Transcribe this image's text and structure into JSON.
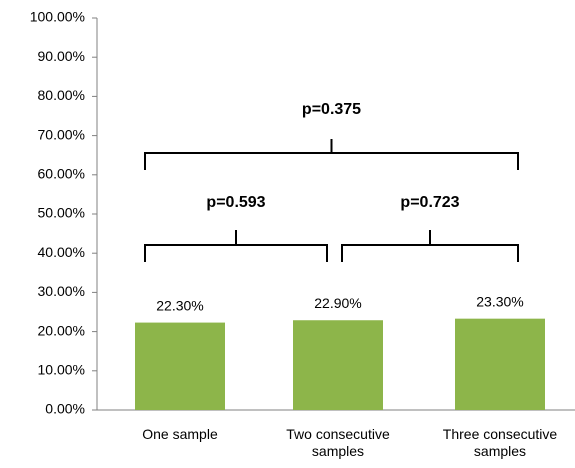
{
  "chart_data": {
    "type": "bar",
    "categories": [
      "One sample",
      "Two consecutive samples",
      "Three consecutive samples"
    ],
    "values": [
      22.3,
      22.9,
      23.3
    ],
    "value_labels": [
      "22.30%",
      "22.90%",
      "23.30%"
    ],
    "color": "#8db54a",
    "ylim": [
      0,
      100
    ],
    "yticks": [
      {
        "value": 0,
        "label": "0.00%"
      },
      {
        "value": 10,
        "label": "10.00%"
      },
      {
        "value": 20,
        "label": "20.00%"
      },
      {
        "value": 30,
        "label": "30.00%"
      },
      {
        "value": 40,
        "label": "40.00%"
      },
      {
        "value": 50,
        "label": "50.00%"
      },
      {
        "value": 60,
        "label": "60.00%"
      },
      {
        "value": 70,
        "label": "70.00%"
      },
      {
        "value": 80,
        "label": "80.00%"
      },
      {
        "value": 90,
        "label": "90.00%"
      },
      {
        "value": 100,
        "label": "100.00%"
      }
    ],
    "grid": false,
    "annotations": [
      "p=0.593",
      "p=0.723",
      "p=0.375"
    ]
  }
}
